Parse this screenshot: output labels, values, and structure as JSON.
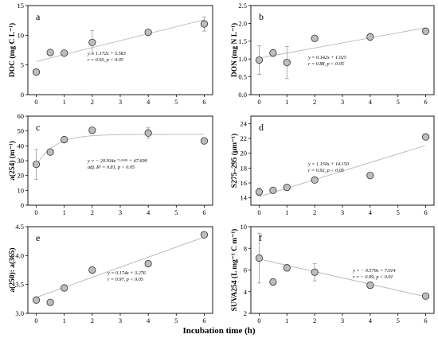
{
  "figure": {
    "xlabel": "Incubation time (h)"
  },
  "chart_data": [
    {
      "panel": "a",
      "type": "scatter",
      "ylabel": "DOC (mg C L⁻¹)",
      "xlim": [
        -0.3,
        6.3
      ],
      "ylim": [
        0,
        15
      ],
      "xticks": [
        0,
        1,
        2,
        3,
        4,
        5,
        6
      ],
      "yticks": [
        0,
        5,
        10,
        15
      ],
      "x": [
        0,
        0.5,
        1,
        2,
        4,
        6
      ],
      "y": [
        3.8,
        7.1,
        7.0,
        8.8,
        10.5,
        11.9
      ],
      "yerr": [
        0.3,
        0.4,
        0.3,
        2.0,
        0.4,
        1.2
      ],
      "fit": {
        "kind": "linear",
        "slope": 1.172,
        "intercept": 5.583,
        "x_range": [
          0,
          6
        ]
      },
      "annotations": [
        "y = 1.172x + 5.583",
        "r = 0.93, p < 0.05"
      ]
    },
    {
      "panel": "b",
      "type": "scatter",
      "ylabel": "DON (mg N L⁻¹)",
      "xlim": [
        -0.3,
        6.3
      ],
      "ylim": [
        0,
        2.5
      ],
      "xticks": [
        0,
        1,
        2,
        3,
        4,
        5,
        6
      ],
      "yticks": [
        0,
        0.5,
        1.0,
        1.5,
        2.0,
        2.5
      ],
      "x": [
        0,
        0.5,
        1,
        2,
        4,
        6
      ],
      "y": [
        0.97,
        1.17,
        0.9,
        1.58,
        1.62,
        1.78
      ],
      "yerr": [
        0.4,
        0.1,
        0.45,
        0.05,
        0.1,
        0.05
      ],
      "fit": {
        "kind": "linear",
        "slope": 0.142,
        "intercept": 1.025,
        "x_range": [
          0,
          6
        ]
      },
      "annotations": [
        "y = 0.142x + 1.025",
        "r = 0.88, p < 0.05"
      ]
    },
    {
      "panel": "c",
      "type": "scatter",
      "ylabel": "a(254) (m⁻¹)",
      "xlim": [
        -0.3,
        6.3
      ],
      "ylim": [
        0,
        60
      ],
      "xticks": [
        0,
        1,
        2,
        3,
        4,
        5,
        6
      ],
      "yticks": [
        0,
        10,
        20,
        30,
        40,
        50,
        60
      ],
      "x": [
        0,
        0.5,
        1,
        2,
        4,
        6
      ],
      "y": [
        27.5,
        35.8,
        44.2,
        50.5,
        48.6,
        43.3
      ],
      "yerr": [
        10,
        1,
        1.5,
        1.5,
        3.5,
        0.8
      ],
      "fit": {
        "kind": "exponential",
        "a": -20.934,
        "b": -1.558,
        "c": 47.699,
        "x_range": [
          0,
          6
        ]
      },
      "annotations": [
        "y = − 20.934e⁻¹·⁵⁵⁸ˣ + 47.699",
        "adj. R² = 0.81, p < 0.05"
      ]
    },
    {
      "panel": "d",
      "type": "scatter",
      "ylabel": "S275–295 (μm⁻¹)",
      "xlim": [
        -0.3,
        6.3
      ],
      "ylim": [
        13,
        25
      ],
      "xticks": [
        0,
        1,
        2,
        3,
        4,
        5,
        6
      ],
      "yticks": [
        14,
        16,
        18,
        20,
        22,
        24
      ],
      "x": [
        0,
        0.5,
        1,
        2,
        4,
        6
      ],
      "y": [
        14.8,
        15.0,
        15.4,
        16.4,
        17.0,
        22.2
      ],
      "yerr": [
        0.5,
        0.3,
        0.3,
        0.2,
        0.3,
        0.2
      ],
      "fit": {
        "kind": "linear",
        "slope": 1.15,
        "intercept": 14.15,
        "x_range": [
          0,
          6
        ]
      },
      "annotations": [
        "y = 1.150x + 14.150",
        "r = 0.92, p < 0.05"
      ]
    },
    {
      "panel": "e",
      "type": "scatter",
      "ylabel": "a(250): a(365)",
      "xlim": [
        -0.3,
        6.3
      ],
      "ylim": [
        3.0,
        4.5
      ],
      "xticks": [
        0,
        1,
        2,
        3,
        4,
        5,
        6
      ],
      "yticks": [
        3.0,
        3.5,
        4.0,
        4.5
      ],
      "x": [
        0,
        0.5,
        1,
        2,
        4,
        6
      ],
      "y": [
        3.23,
        3.19,
        3.44,
        3.75,
        3.86,
        4.36
      ],
      "yerr": [
        0.03,
        0.03,
        0.04,
        0.04,
        0.04,
        0.04
      ],
      "fit": {
        "kind": "linear",
        "slope": 0.174,
        "intercept": 3.276,
        "x_range": [
          0,
          6
        ]
      },
      "annotations": [
        "y = 0.174x + 3.276",
        "r = 0.97, p < 0.05"
      ]
    },
    {
      "panel": "f",
      "type": "scatter",
      "ylabel": "SUVA254 (L mg⁻¹ C m⁻¹)",
      "xlim": [
        -0.3,
        6.3
      ],
      "ylim": [
        2,
        10
      ],
      "xticks": [
        0,
        1,
        2,
        3,
        4,
        5,
        6
      ],
      "yticks": [
        2,
        4,
        6,
        8,
        10
      ],
      "x": [
        0,
        0.5,
        1,
        2,
        4,
        6
      ],
      "y": [
        7.1,
        4.9,
        6.2,
        5.8,
        4.6,
        3.6
      ],
      "yerr": [
        2.3,
        0.3,
        0.3,
        0.8,
        0.3,
        0.2
      ],
      "fit": {
        "kind": "linear",
        "slope": -0.579,
        "intercept": 7.014,
        "x_range": [
          0,
          6
        ]
      },
      "annotations": [
        "y = − 0.579x + 7.014",
        "r = − 0.99, p < 0.01"
      ]
    }
  ]
}
